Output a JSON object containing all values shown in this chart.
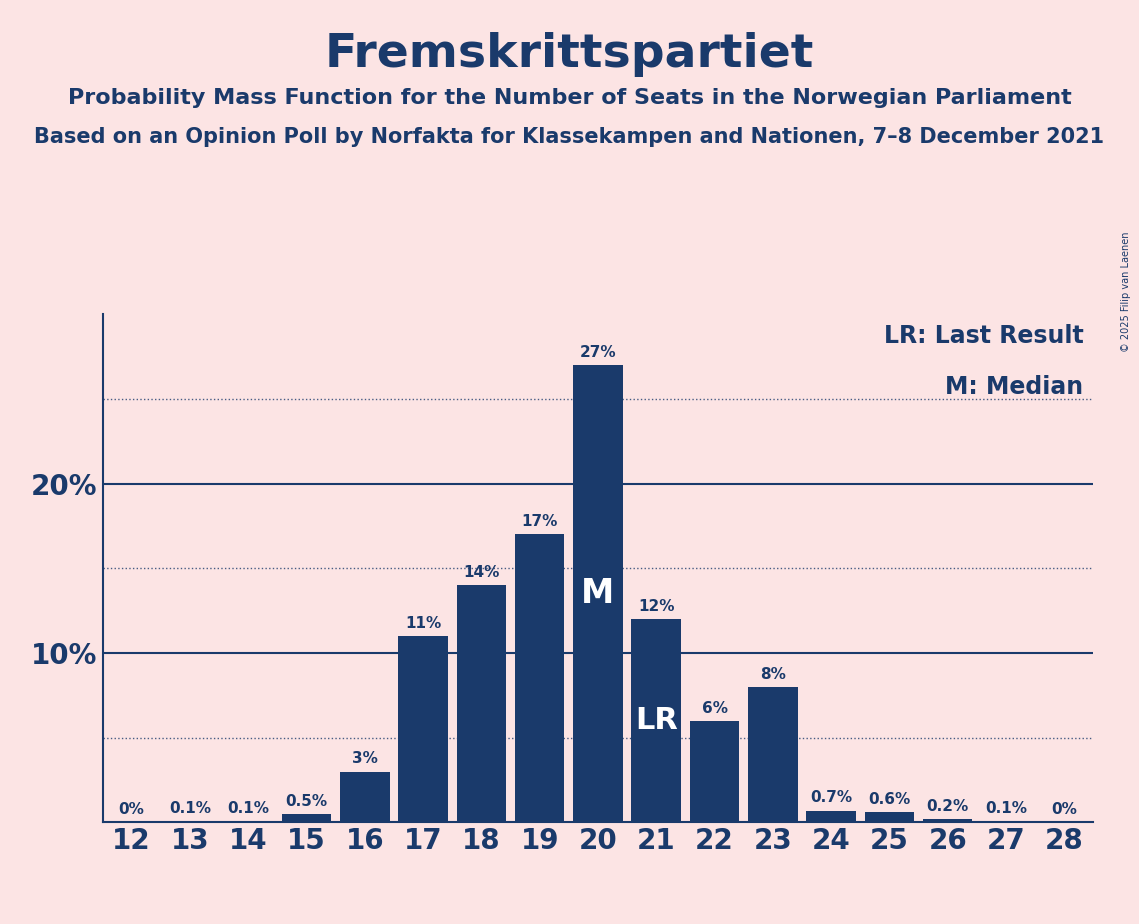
{
  "title": "Fremskrittspartiet",
  "subtitle1": "Probability Mass Function for the Number of Seats in the Norwegian Parliament",
  "subtitle2": "Based on an Opinion Poll by Norfakta for Klassekampen and Nationen, 7–8 December 2021",
  "copyright": "© 2025 Filip van Laenen",
  "legend_lr": "LR: Last Result",
  "legend_m": "M: Median",
  "seats": [
    12,
    13,
    14,
    15,
    16,
    17,
    18,
    19,
    20,
    21,
    22,
    23,
    24,
    25,
    26,
    27,
    28
  ],
  "probabilities": [
    0.0,
    0.1,
    0.1,
    0.5,
    3.0,
    11.0,
    14.0,
    17.0,
    27.0,
    12.0,
    6.0,
    8.0,
    0.7,
    0.6,
    0.2,
    0.1,
    0.0
  ],
  "bar_color": "#1a3a6b",
  "background_color": "#fce4e4",
  "text_color": "#1a3a6b",
  "median_seat": 20,
  "last_result_seat": 21,
  "ylim_max": 30
}
